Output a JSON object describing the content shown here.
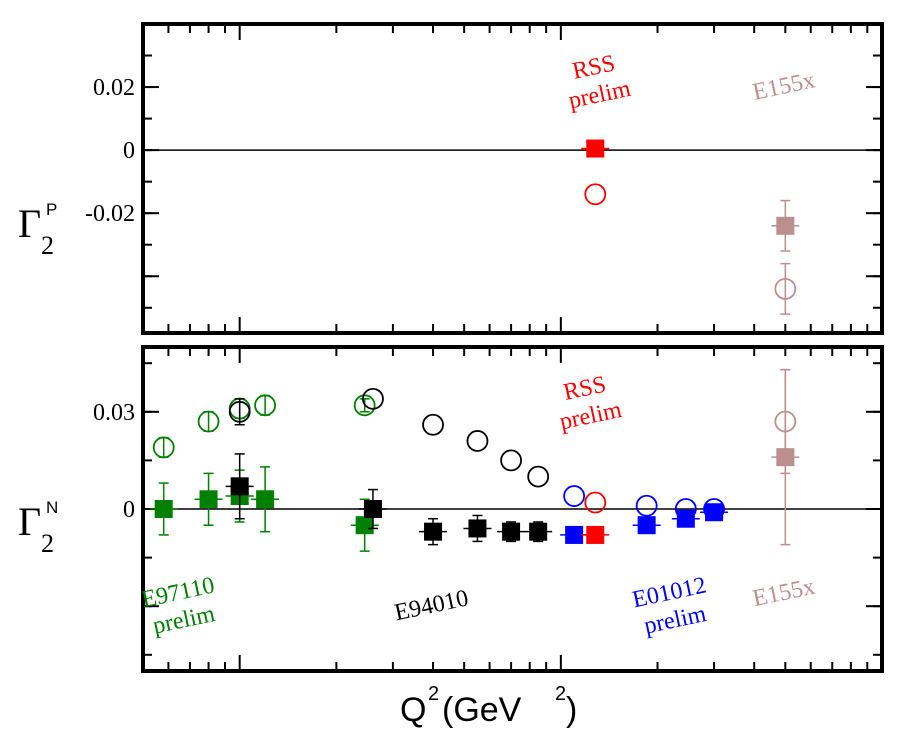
{
  "chart_data": [
    {
      "type": "scatter",
      "panel": "top",
      "ylabel": {
        "symbol": "Γ",
        "sup": "P",
        "sub": "2"
      },
      "ylim": [
        -0.058,
        0.04
      ],
      "yticks": [
        {
          "value": 0.02,
          "label": "0.02"
        },
        {
          "value": 0,
          "label": "0"
        },
        {
          "value": -0.02,
          "label": "-0.02"
        }
      ],
      "zero_line": true,
      "series": [
        {
          "key": "rss_sq",
          "marker": "square",
          "color": "#ff0000",
          "points": [
            {
              "x": 1.28,
              "y": 0.0005,
              "err": 0.0025
            }
          ]
        },
        {
          "key": "rss_circ",
          "marker": "circle",
          "color": "#ff0000",
          "points": [
            {
              "x": 1.28,
              "y": -0.014,
              "err": 0
            }
          ]
        },
        {
          "key": "e155_sq",
          "marker": "square",
          "color": "#bc8f8f",
          "points": [
            {
              "x": 5.0,
              "y": -0.024,
              "err": 0.008
            }
          ]
        },
        {
          "key": "e155_circ",
          "marker": "circle",
          "color": "#bc8f8f",
          "points": [
            {
              "x": 5.0,
              "y": -0.044,
              "err": 0.008
            }
          ]
        }
      ],
      "annotations": [
        {
          "lines": [
            "RSS",
            "prelim"
          ],
          "color": "#ff0000",
          "x": 1.28,
          "y": 0.024,
          "rotate": -12
        },
        {
          "lines": [
            "E155x"
          ],
          "color": "#bc8f8f",
          "x": 5.0,
          "y": 0.018,
          "rotate": -12
        }
      ]
    },
    {
      "type": "scatter",
      "panel": "bottom",
      "ylabel": {
        "symbol": "Γ",
        "sup": "N",
        "sub": "2"
      },
      "xlabel": {
        "base": "Q",
        "sup1": "2",
        "mid": " (GeV",
        "sup2": "2",
        "end": ")"
      },
      "ylim": [
        -0.05,
        0.05
      ],
      "yticks": [
        {
          "value": 0.03,
          "label": "0.03"
        },
        {
          "value": 0,
          "label": "0"
        }
      ],
      "zero_line": true,
      "series": [
        {
          "key": "e97110_sq",
          "marker": "square",
          "color": "#008000",
          "points": [
            {
              "x": 0.058,
              "y": 0.0,
              "err": 0.008
            },
            {
              "x": 0.08,
              "y": 0.003,
              "err": 0.008
            },
            {
              "x": 0.1,
              "y": 0.004,
              "err": 0.008
            },
            {
              "x": 0.12,
              "y": 0.003,
              "err": 0.01
            },
            {
              "x": 0.245,
              "y": -0.005,
              "err": 0.008
            }
          ]
        },
        {
          "key": "e97110_circ",
          "marker": "circle",
          "color": "#008000",
          "points": [
            {
              "x": 0.058,
              "y": 0.019,
              "err": 0.003
            },
            {
              "x": 0.08,
              "y": 0.027,
              "err": 0.003
            },
            {
              "x": 0.1,
              "y": 0.031,
              "err": 0.003
            },
            {
              "x": 0.12,
              "y": 0.032,
              "err": 0.003
            },
            {
              "x": 0.245,
              "y": 0.032,
              "err": 0.002
            }
          ]
        },
        {
          "key": "e94010_sq",
          "marker": "square",
          "color": "#000000",
          "points": [
            {
              "x": 0.1,
              "y": 0.007,
              "err": 0.01
            },
            {
              "x": 0.26,
              "y": 0.0,
              "err": 0.006
            },
            {
              "x": 0.4,
              "y": -0.007,
              "err": 0.004
            },
            {
              "x": 0.55,
              "y": -0.006,
              "err": 0.004
            },
            {
              "x": 0.7,
              "y": -0.007,
              "err": 0.003
            },
            {
              "x": 0.85,
              "y": -0.007,
              "err": 0.003
            }
          ]
        },
        {
          "key": "e94010_circ",
          "marker": "circle",
          "color": "#000000",
          "points": [
            {
              "x": 0.1,
              "y": 0.03,
              "err": 0.004
            },
            {
              "x": 0.26,
              "y": 0.034,
              "err": 0.0
            },
            {
              "x": 0.4,
              "y": 0.026,
              "err": 0.0
            },
            {
              "x": 0.55,
              "y": 0.021,
              "err": 0.0
            },
            {
              "x": 0.7,
              "y": 0.015,
              "err": 0.0
            },
            {
              "x": 0.85,
              "y": 0.01,
              "err": 0.0
            }
          ]
        },
        {
          "key": "e01012_sq",
          "marker": "square",
          "color": "#0000ff",
          "points": [
            {
              "x": 1.1,
              "y": -0.008,
              "err": 0
            },
            {
              "x": 1.85,
              "y": -0.005,
              "err": 0
            },
            {
              "x": 2.45,
              "y": -0.003,
              "err": 0
            },
            {
              "x": 3.0,
              "y": -0.001,
              "err": 0
            }
          ]
        },
        {
          "key": "e01012_circ",
          "marker": "circle",
          "color": "#0000ff",
          "points": [
            {
              "x": 1.1,
              "y": 0.004,
              "err": 0
            },
            {
              "x": 1.85,
              "y": 0.001,
              "err": 0
            },
            {
              "x": 2.45,
              "y": 0.0,
              "err": 0
            },
            {
              "x": 3.0,
              "y": 0.0,
              "err": 0
            }
          ]
        },
        {
          "key": "rss_sq",
          "marker": "square",
          "color": "#ff0000",
          "points": [
            {
              "x": 1.28,
              "y": -0.008,
              "err": 0.002
            }
          ]
        },
        {
          "key": "rss_circ",
          "marker": "circle",
          "color": "#ff0000",
          "points": [
            {
              "x": 1.28,
              "y": 0.002,
              "err": 0
            }
          ]
        },
        {
          "key": "e155_sq",
          "marker": "square",
          "color": "#bc8f8f",
          "points": [
            {
              "x": 5.0,
              "y": 0.016,
              "err": 0.027
            }
          ]
        },
        {
          "key": "e155_circ",
          "marker": "circle",
          "color": "#bc8f8f",
          "points": [
            {
              "x": 5.0,
              "y": 0.027,
              "err": 0.016
            }
          ]
        }
      ],
      "annotations": [
        {
          "lines": [
            "RSS",
            "prelim"
          ],
          "color": "#ff0000",
          "x": 1.2,
          "y": 0.035,
          "rotate": -12
        },
        {
          "lines": [
            "E97110",
            "prelim"
          ],
          "color": "#008000",
          "x": 0.065,
          "y": -0.028,
          "rotate": -12
        },
        {
          "lines": [
            "E94010"
          ],
          "color": "#000000",
          "x": 0.4,
          "y": -0.032,
          "rotate": -12
        },
        {
          "lines": [
            "E01012",
            "prelim"
          ],
          "color": "#0000ff",
          "x": 2.2,
          "y": -0.028,
          "rotate": -12
        },
        {
          "lines": [
            "E155x"
          ],
          "color": "#bc8f8f",
          "x": 5.0,
          "y": -0.028,
          "rotate": -12
        }
      ]
    }
  ],
  "x_axis": {
    "scale": "log",
    "xlim": [
      0.05,
      10
    ]
  }
}
